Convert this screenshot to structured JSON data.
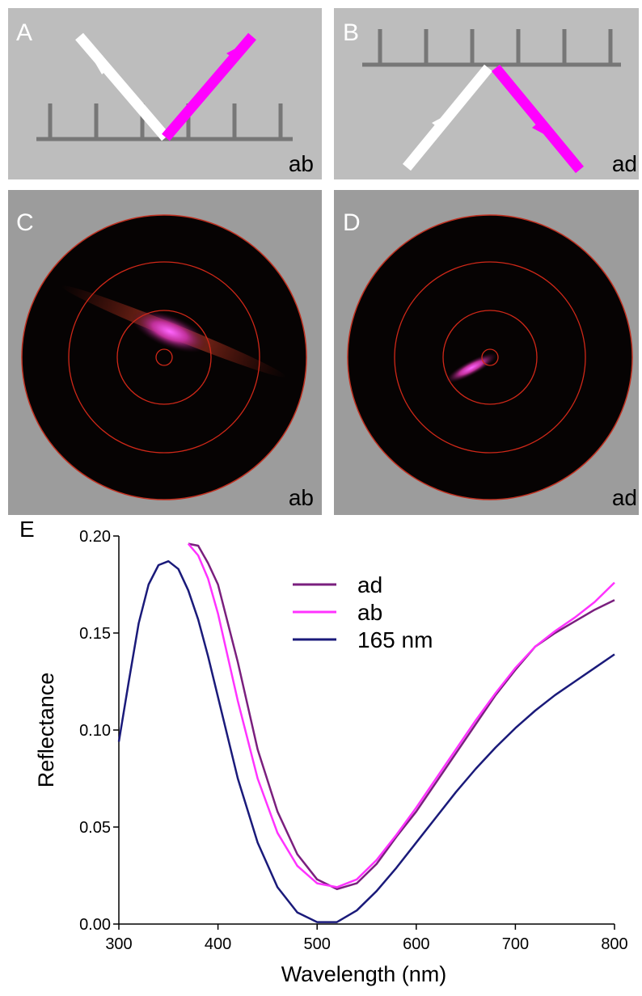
{
  "panels": [
    {
      "label": "A",
      "tag": "ab"
    },
    {
      "label": "B",
      "tag": "ad"
    },
    {
      "label": "C",
      "tag": "ab"
    },
    {
      "label": "D",
      "tag": "ad"
    }
  ],
  "chart_data": {
    "type": "line",
    "panel_label": "E",
    "xlabel": "Wavelength (nm)",
    "ylabel": "Reflectance",
    "x": [
      300,
      310,
      320,
      330,
      340,
      350,
      360,
      370,
      380,
      390,
      400,
      420,
      440,
      460,
      480,
      500,
      520,
      540,
      560,
      580,
      600,
      620,
      640,
      660,
      680,
      700,
      720,
      740,
      760,
      780,
      800
    ],
    "series": [
      {
        "name": "ad",
        "color": "#7a1f7e",
        "values": [
          null,
          null,
          null,
          null,
          null,
          null,
          null,
          0.196,
          0.195,
          0.186,
          0.175,
          0.135,
          0.09,
          0.058,
          0.036,
          0.023,
          0.018,
          0.021,
          0.031,
          0.045,
          0.058,
          0.073,
          0.088,
          0.103,
          0.118,
          0.131,
          0.143,
          0.15,
          0.156,
          0.162,
          0.167
        ]
      },
      {
        "name": "ab",
        "color": "#ff33ff",
        "values": [
          null,
          null,
          null,
          null,
          null,
          null,
          null,
          0.196,
          0.19,
          0.178,
          0.16,
          0.115,
          0.075,
          0.047,
          0.03,
          0.021,
          0.019,
          0.023,
          0.033,
          0.046,
          0.06,
          0.075,
          0.09,
          0.105,
          0.119,
          0.132,
          0.143,
          0.151,
          0.158,
          0.166,
          0.176
        ]
      },
      {
        "name": "165 nm",
        "color": "#1a1a7a",
        "values": [
          0.094,
          0.125,
          0.155,
          0.175,
          0.185,
          0.187,
          0.183,
          0.172,
          0.157,
          0.138,
          0.117,
          0.075,
          0.042,
          0.019,
          0.006,
          0.001,
          0.001,
          0.007,
          0.017,
          0.029,
          0.042,
          0.055,
          0.068,
          0.08,
          0.091,
          0.101,
          0.11,
          0.118,
          0.125,
          0.132,
          0.139
        ]
      }
    ],
    "xlim": [
      300,
      800
    ],
    "xticks": [
      300,
      400,
      500,
      600,
      700,
      800
    ],
    "ylim": [
      0,
      0.2
    ],
    "yticks": [
      {
        "value": 0,
        "label": "0.00"
      },
      0.05,
      {
        "value": 0.1,
        "label": "0.10"
      },
      0.15,
      {
        "value": 0.2,
        "label": "0.20"
      }
    ],
    "legend": "upper center",
    "grid": false
  }
}
